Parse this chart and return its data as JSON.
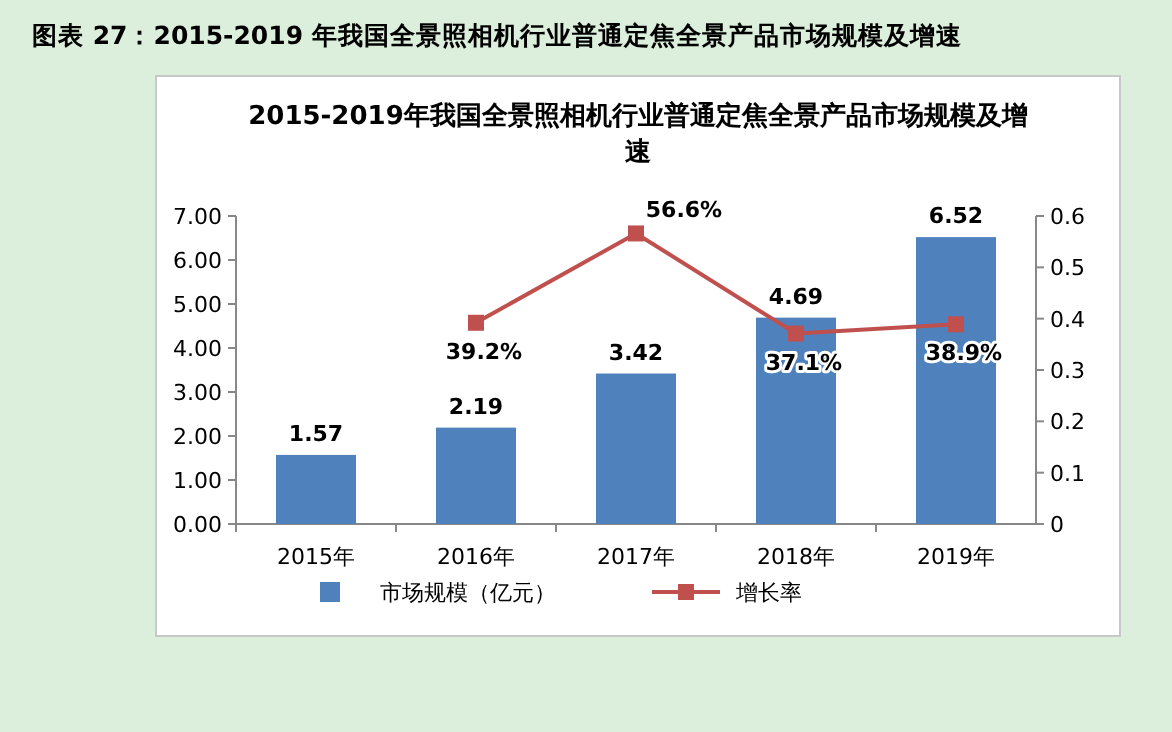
{
  "chart_data": {
    "type": "bar",
    "title": "图表 27：2015-2019 年我国全景照相机行业普通定焦全景产品市场规模及增速",
    "subtitle": "2015-2019年我国全景照相机行业普通定焦全景产品市场规模及增速",
    "categories": [
      "2015年",
      "2016年",
      "2017年",
      "2018年",
      "2019年"
    ],
    "series": [
      {
        "name": "市场规模（亿元）",
        "color": "#4f81bd",
        "values": [
          1.57,
          2.19,
          3.42,
          4.69,
          6.52
        ],
        "value_labels": [
          "1.57",
          "2.19",
          "3.42",
          "4.69",
          "6.52"
        ]
      },
      {
        "name": "增长率",
        "type": "line",
        "axis": "y2",
        "color": "#c0504d",
        "marker": "square",
        "values": [
          null,
          0.392,
          0.566,
          0.371,
          0.389
        ],
        "value_labels": [
          null,
          "39.2%",
          "56.6%",
          "37.1%",
          "38.9%"
        ]
      }
    ],
    "ylim": [
      0,
      7
    ],
    "yticks": [
      {
        "value": 0,
        "label": "0.00"
      },
      {
        "value": 1,
        "label": "1.00"
      },
      {
        "value": 2,
        "label": "2.00"
      },
      {
        "value": 3,
        "label": "3.00"
      },
      {
        "value": 4,
        "label": "4.00"
      },
      {
        "value": 5,
        "label": "5.00"
      },
      {
        "value": 6,
        "label": "6.00"
      },
      {
        "value": 7,
        "label": "7.00"
      }
    ],
    "y2lim": [
      0,
      0.6
    ],
    "y2ticks": [
      0,
      0.1,
      0.2,
      0.3,
      0.4,
      0.5,
      0.6
    ],
    "legend": "bottom"
  }
}
